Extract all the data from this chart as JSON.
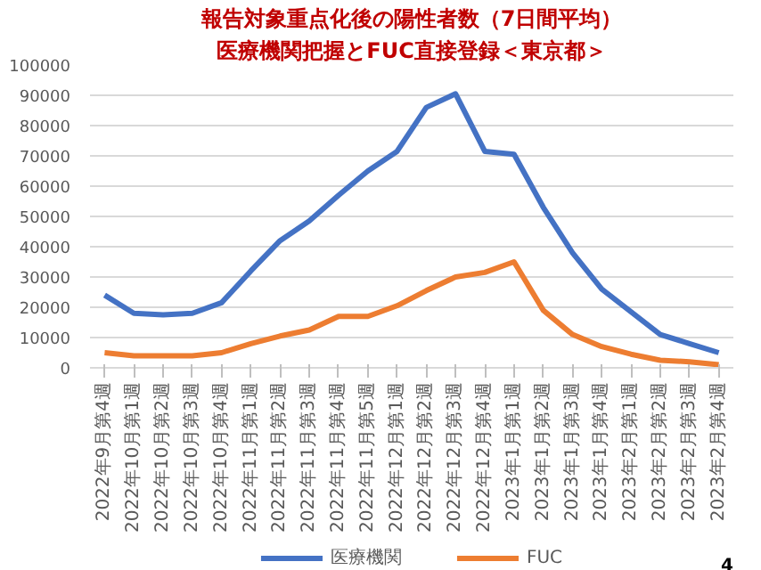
{
  "chart_data": {
    "type": "line",
    "title": "報告対象重点化後の陽性者数（7日間平均）",
    "subtitle": "医療機関把握とFUC直接登録＜東京都＞",
    "categories": [
      "2022年9月第4週",
      "2022年10月第1週",
      "2022年10月第2週",
      "2022年10月第3週",
      "2022年10月第4週",
      "2022年11月第1週",
      "2022年11月第2週",
      "2022年11月第3週",
      "2022年11月第4週",
      "2022年11月第5週",
      "2022年12月第1週",
      "2022年12月第2週",
      "2022年12月第3週",
      "2022年12月第4週",
      "2023年1月第1週",
      "2023年1月第2週",
      "2023年1月第3週",
      "2023年1月第4週",
      "2023年2月第1週",
      "2023年2月第2週",
      "2023年2月第3週",
      "2023年2月第4週"
    ],
    "series": [
      {
        "name": "医療機関",
        "color": "#4472c4",
        "values": [
          24000,
          18000,
          17500,
          18000,
          21500,
          32000,
          42000,
          48500,
          57000,
          65000,
          71500,
          86000,
          90500,
          71500,
          70500,
          53000,
          38000,
          26000,
          18500,
          11000,
          8000,
          5000
        ]
      },
      {
        "name": "FUC",
        "color": "#ed7d31",
        "values": [
          5000,
          4000,
          4000,
          4000,
          5000,
          8000,
          10500,
          12500,
          17000,
          17000,
          20500,
          25500,
          30000,
          31500,
          35000,
          19000,
          11000,
          7000,
          4500,
          2500,
          2000,
          1000
        ]
      }
    ],
    "ylim": [
      0,
      100000
    ],
    "yticks": [
      0,
      10000,
      20000,
      30000,
      40000,
      50000,
      60000,
      70000,
      80000,
      90000,
      100000
    ],
    "grid": "y",
    "legend": "bottom",
    "marker": "none",
    "line_style": "solid",
    "annotations": [
      "4"
    ]
  }
}
